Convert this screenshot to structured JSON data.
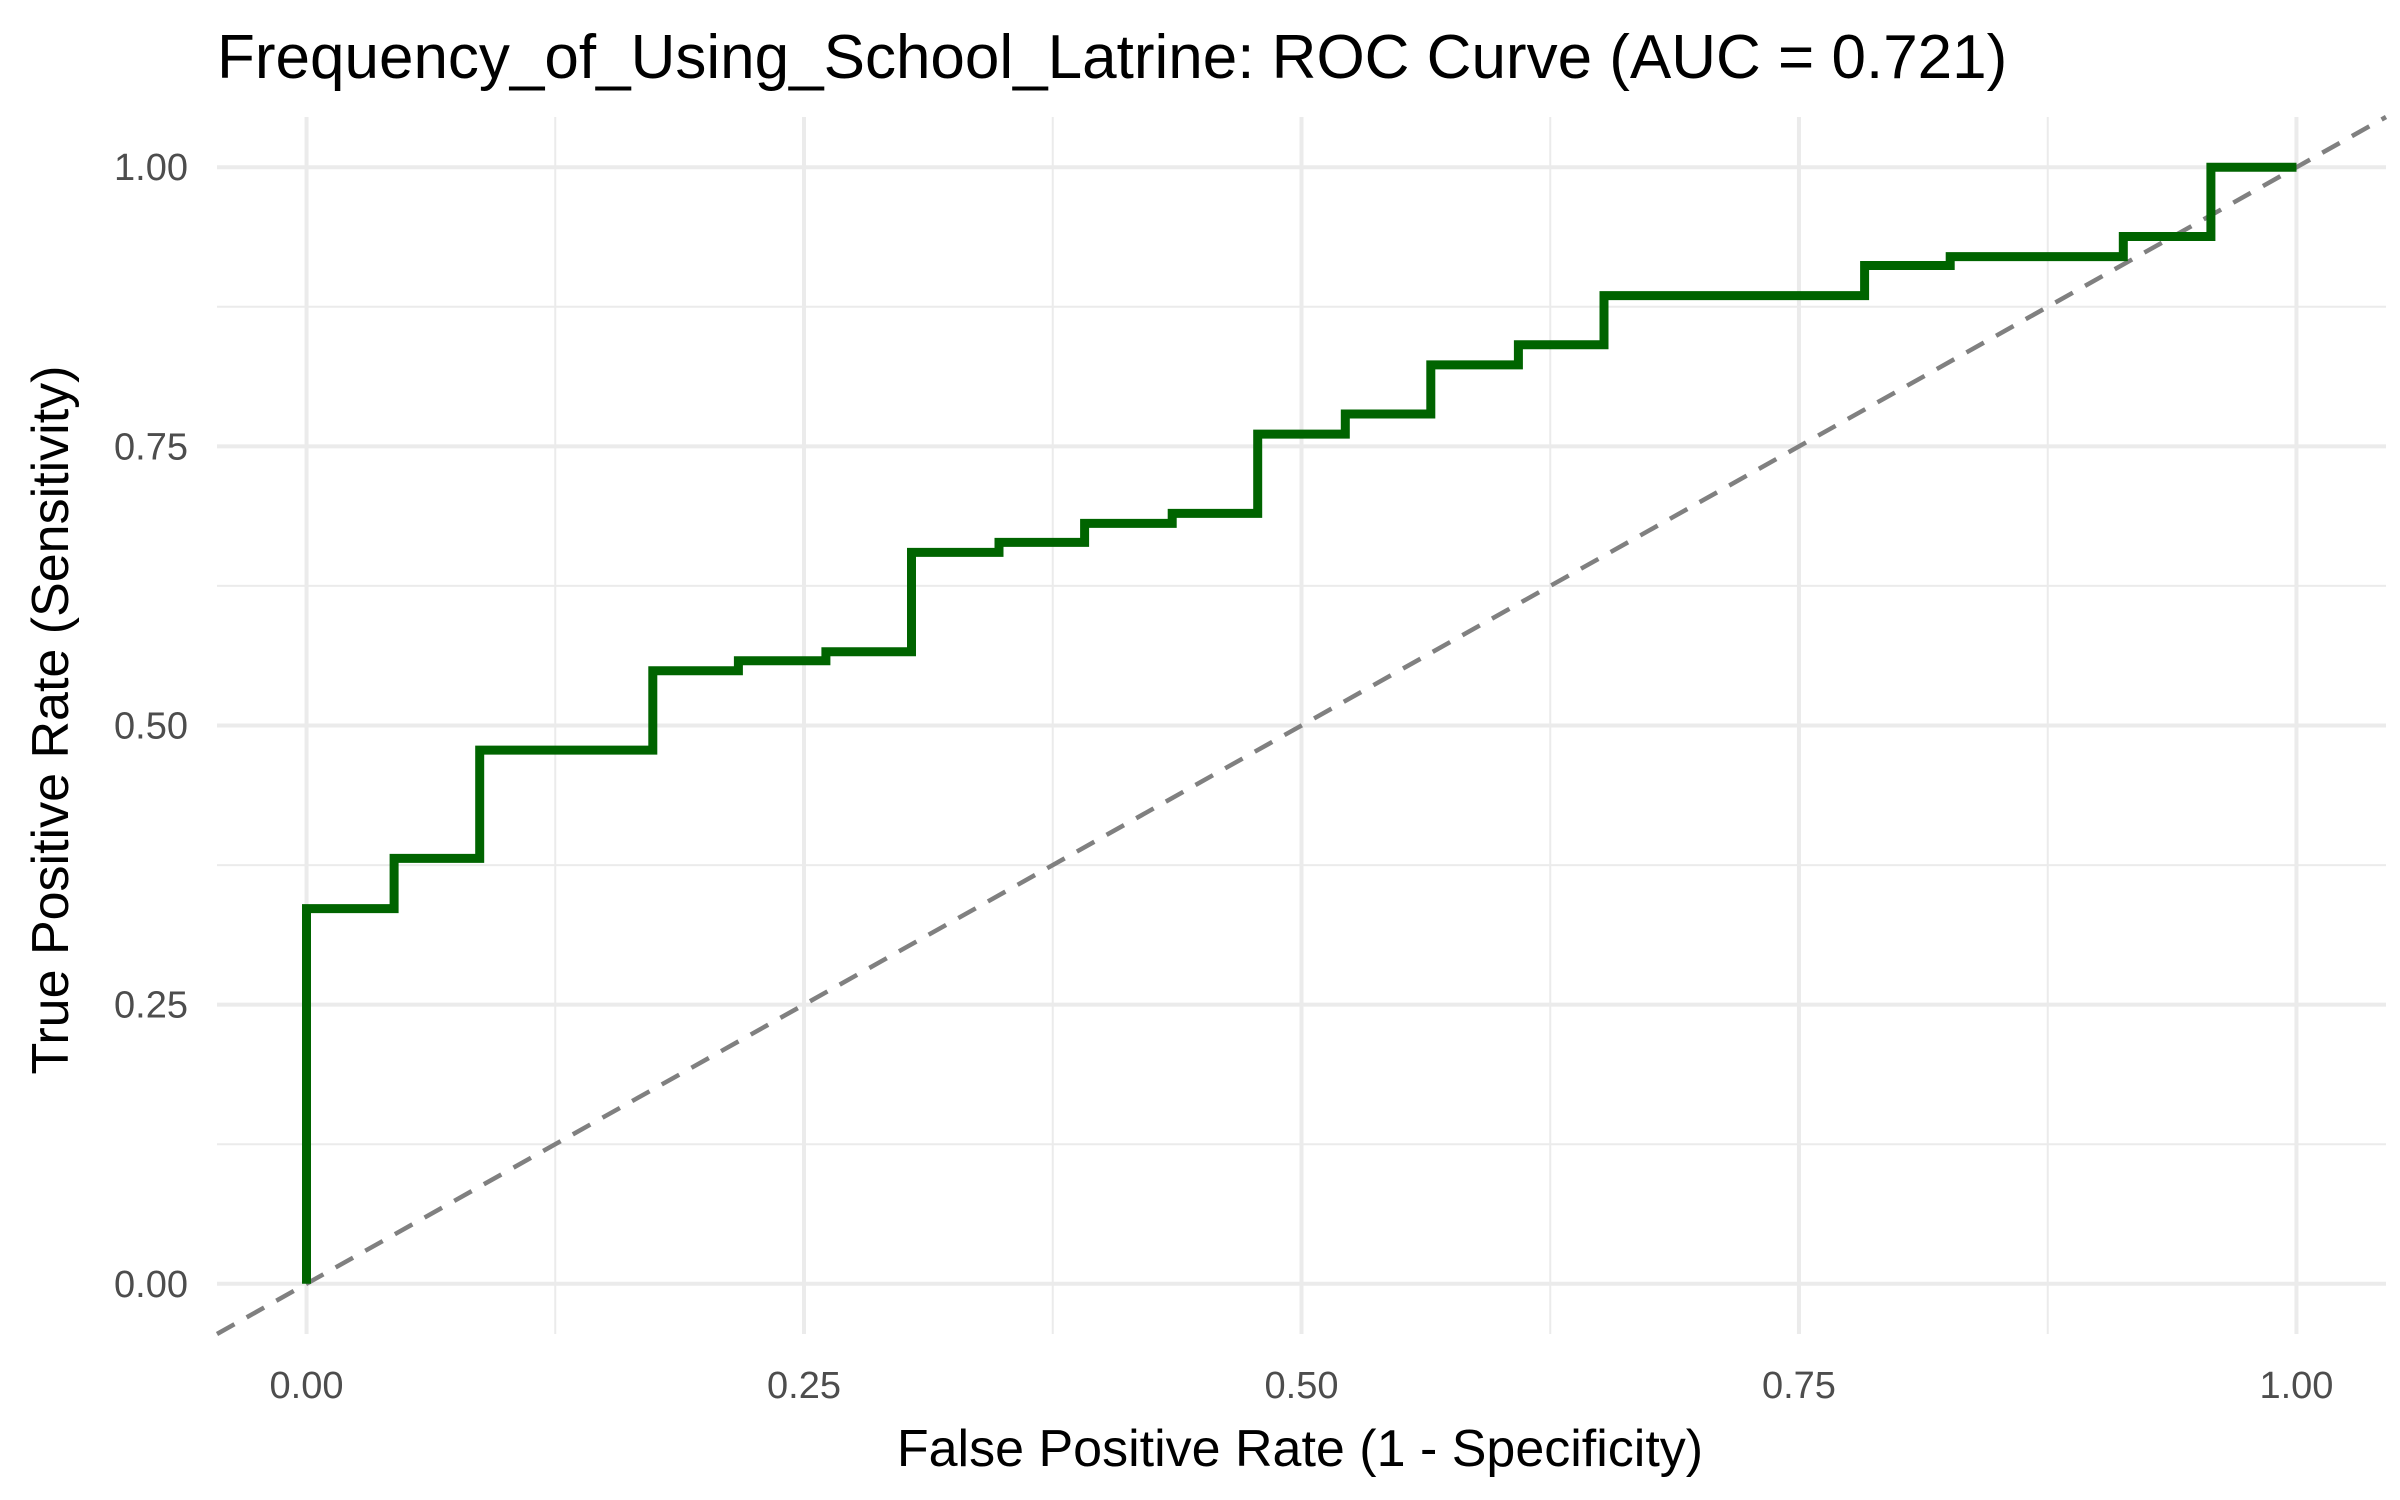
{
  "chart_data": {
    "type": "line",
    "title": "Frequency_of_Using_School_Latrine: ROC Curve (AUC = 0.721)",
    "xlabel": "False Positive Rate (1 - Specificity)",
    "ylabel": "True Positive Rate (Sensitivity)",
    "xlim": [
      -0.045,
      1.045
    ],
    "ylim": [
      -0.045,
      1.045
    ],
    "x_ticks": [
      0,
      0.25,
      0.5,
      0.75,
      1
    ],
    "x_tick_labels": [
      "0.00",
      "0.25",
      "0.50",
      "0.75",
      "1.00"
    ],
    "y_ticks": [
      0,
      0.25,
      0.5,
      0.75,
      1
    ],
    "y_tick_labels": [
      "0.00",
      "0.25",
      "0.50",
      "0.75",
      "1.00"
    ],
    "grid": true,
    "legend": "none",
    "series": [
      {
        "style": "step",
        "color": "#006400",
        "x": [
          0,
          0,
          0.044,
          0.044,
          0.087,
          0.087,
          0.174,
          0.174,
          0.217,
          0.217,
          0.261,
          0.261,
          0.304,
          0.304,
          0.348,
          0.348,
          0.391,
          0.391,
          0.435,
          0.435,
          0.478,
          0.478,
          0.522,
          0.522,
          0.565,
          0.565,
          0.609,
          0.609,
          0.652,
          0.652,
          0.783,
          0.783,
          0.826,
          0.826,
          0.913,
          0.913,
          0.957,
          0.957,
          1
        ],
        "y": [
          0,
          0.336,
          0.336,
          0.381,
          0.381,
          0.478,
          0.478,
          0.549,
          0.549,
          0.558,
          0.558,
          0.566,
          0.566,
          0.655,
          0.655,
          0.664,
          0.664,
          0.681,
          0.681,
          0.69,
          0.69,
          0.761,
          0.761,
          0.779,
          0.779,
          0.823,
          0.823,
          0.841,
          0.841,
          0.885,
          0.885,
          0.912,
          0.912,
          0.92,
          0.92,
          0.938,
          0.938,
          1,
          1
        ]
      },
      {
        "style": "dashed",
        "color": "#808080",
        "x": [
          -0.045,
          1.045
        ],
        "y": [
          -0.045,
          1.045
        ]
      }
    ]
  }
}
